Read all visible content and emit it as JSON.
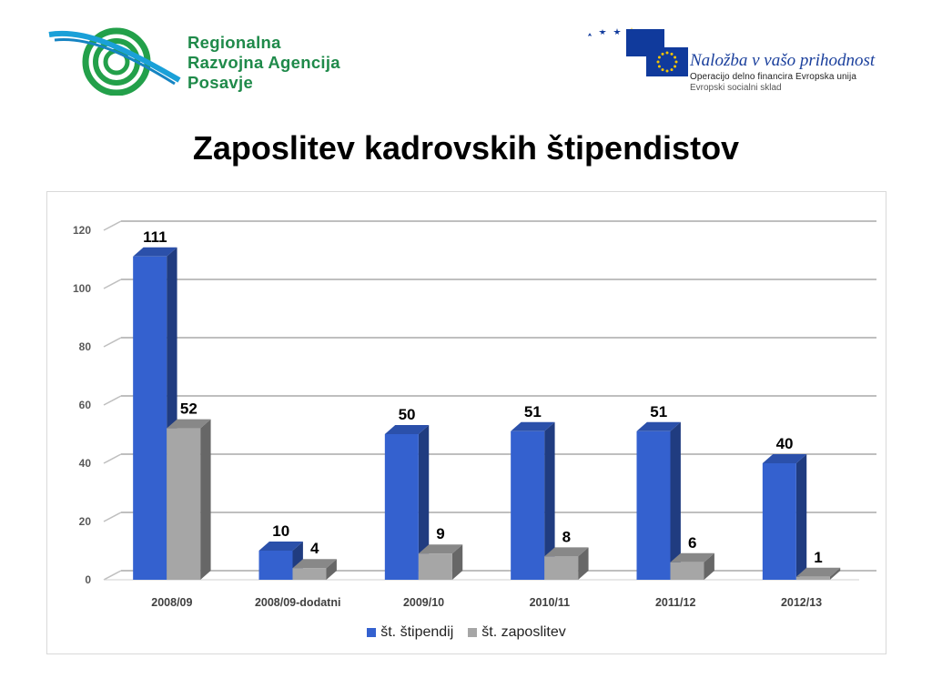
{
  "header": {
    "rra_logo": {
      "line1": "Regionalna",
      "line2": "Razvojna Agencija",
      "line3": "Posavje"
    },
    "eu_logo": {
      "line1": "Naložba v vašo prihodnost",
      "line2": "Operacijo delno financira Evropska unija",
      "line3": "Evropski socialni sklad"
    }
  },
  "chart_data": {
    "type": "bar",
    "title": "Zaposlitev kadrovskih štipendistov",
    "categories": [
      "2008/09",
      "2008/09-dodatni",
      "2009/10",
      "2010/11",
      "2011/12",
      "2012/13"
    ],
    "series": [
      {
        "name": "št. štipendij",
        "values": [
          111,
          10,
          50,
          51,
          51,
          40
        ],
        "color": "#3461cf"
      },
      {
        "name": "št. zaposlitev",
        "values": [
          52,
          4,
          9,
          8,
          6,
          1
        ],
        "color": "#a6a6a6"
      }
    ],
    "ylim": [
      0,
      120
    ],
    "yticks": [
      0,
      20,
      40,
      60,
      80,
      100,
      120
    ],
    "grid": true,
    "legend": "bottom",
    "style": "3d-column"
  }
}
